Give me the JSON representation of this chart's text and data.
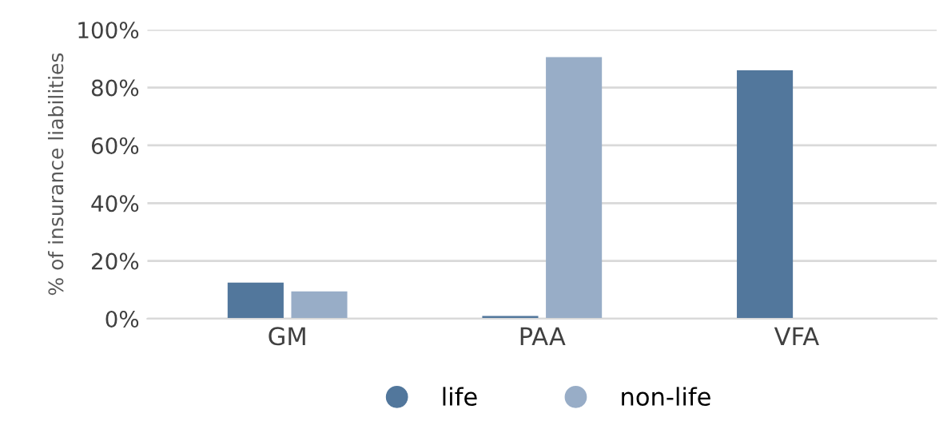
{
  "chart_data": {
    "type": "bar",
    "ylabel": "% of insurance liabilities",
    "categories": [
      "GM",
      "PAA",
      "VFA"
    ],
    "series": [
      {
        "name": "life",
        "color": "#52779c",
        "values": [
          12.5,
          1,
          86
        ]
      },
      {
        "name": "non-life",
        "color": "#98adc7",
        "values": [
          9.5,
          90.5,
          0
        ]
      }
    ],
    "ylim": [
      0,
      100
    ],
    "yticks": [
      {
        "value": 0,
        "label": "0%"
      },
      {
        "value": 20,
        "label": "20%"
      },
      {
        "value": 40,
        "label": "40%"
      },
      {
        "value": 60,
        "label": "60%"
      },
      {
        "value": 80,
        "label": "80%"
      },
      {
        "value": 100,
        "label": "100%"
      }
    ],
    "grid": "y",
    "legend": "bottom"
  }
}
